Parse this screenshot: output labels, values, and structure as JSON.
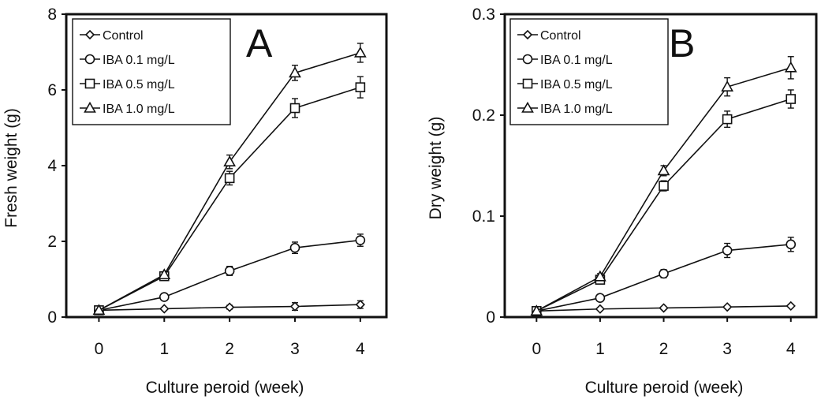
{
  "chart_data": [
    {
      "panel_label": "A",
      "type": "line",
      "xlabel": "Culture peroid (week)",
      "ylabel": "Fresh weight (g)",
      "xlim": [
        -0.5,
        4.4
      ],
      "ylim": [
        0,
        8
      ],
      "xticks": [
        0,
        1,
        2,
        3,
        4
      ],
      "yticks": [
        0,
        2,
        4,
        6,
        8
      ],
      "x": [
        0,
        1,
        2,
        3,
        4
      ],
      "legend_position": "top-left",
      "grid": false,
      "series": [
        {
          "name": "Control",
          "marker": "diamond",
          "values": [
            0.18,
            0.22,
            0.26,
            0.28,
            0.33
          ],
          "errors": [
            0.02,
            0.03,
            0.05,
            0.1,
            0.1
          ]
        },
        {
          "name": "IBA 0.1 mg/L",
          "marker": "circle",
          "values": [
            0.18,
            0.53,
            1.22,
            1.83,
            2.03
          ],
          "errors": [
            0.02,
            0.05,
            0.12,
            0.15,
            0.16
          ]
        },
        {
          "name": "IBA 0.5 mg/L",
          "marker": "square",
          "values": [
            0.18,
            1.08,
            3.67,
            5.52,
            6.07
          ],
          "errors": [
            0.02,
            0.06,
            0.18,
            0.25,
            0.28
          ]
        },
        {
          "name": "IBA 1.0 mg/L",
          "marker": "triangle",
          "values": [
            0.18,
            1.12,
            4.1,
            6.45,
            6.98
          ],
          "errors": [
            0.02,
            0.07,
            0.18,
            0.2,
            0.25
          ]
        }
      ]
    },
    {
      "panel_label": "B",
      "type": "line",
      "xlabel": "Culture peroid (week)",
      "ylabel": "Dry weight (g)",
      "xlim": [
        -0.5,
        4.4
      ],
      "ylim": [
        0,
        0.3
      ],
      "xticks": [
        0,
        1,
        2,
        3,
        4
      ],
      "yticks": [
        0,
        0.1,
        0.2,
        0.3
      ],
      "x": [
        0,
        1,
        2,
        3,
        4
      ],
      "legend_position": "top-left",
      "grid": false,
      "series": [
        {
          "name": "Control",
          "marker": "diamond",
          "values": [
            0.006,
            0.008,
            0.009,
            0.01,
            0.011
          ],
          "errors": [
            0.001,
            0.001,
            0.001,
            0.001,
            0.001
          ]
        },
        {
          "name": "IBA 0.1 mg/L",
          "marker": "circle",
          "values": [
            0.006,
            0.019,
            0.043,
            0.066,
            0.072
          ],
          "errors": [
            0.001,
            0.002,
            0.004,
            0.007,
            0.007
          ]
        },
        {
          "name": "IBA 0.5 mg/L",
          "marker": "square",
          "values": [
            0.006,
            0.037,
            0.13,
            0.196,
            0.216
          ],
          "errors": [
            0.001,
            0.003,
            0.005,
            0.008,
            0.009
          ]
        },
        {
          "name": "IBA 1.0 mg/L",
          "marker": "triangle",
          "values": [
            0.006,
            0.04,
            0.145,
            0.228,
            0.247
          ],
          "errors": [
            0.001,
            0.003,
            0.005,
            0.009,
            0.011
          ]
        }
      ]
    }
  ]
}
